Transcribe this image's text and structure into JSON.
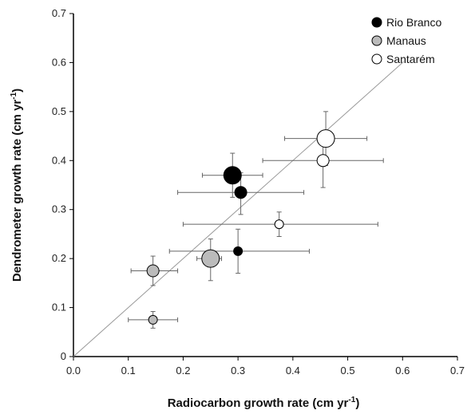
{
  "chart_data": {
    "type": "scatter",
    "xlabel": "Radiocarbon growth rate (cm yr",
    "xlabel_sup": "-1",
    "xlabel_end": ")",
    "ylabel": "Dendrometer growth rate (cm yr",
    "ylabel_sup": "-1",
    "ylabel_end": ")",
    "xlim": [
      0,
      0.7
    ],
    "ylim": [
      0,
      0.7
    ],
    "xticks": [
      "0.0",
      "0.1",
      "0.2",
      "0.3",
      "0.4",
      "0.5",
      "0.6",
      "0.7"
    ],
    "yticks": [
      "0",
      "0.1",
      "0.2",
      "0.3",
      "0.4",
      "0.5",
      "0.6",
      "0.7"
    ],
    "reference_line": "1:1",
    "legend_position": "top-right",
    "series": [
      {
        "name": "Rio Branco",
        "color": "#000000",
        "points": [
          {
            "x": 0.29,
            "y": 0.37,
            "xerr": [
              0.235,
              0.345
            ],
            "yerr": [
              0.325,
              0.415
            ],
            "size": "large"
          },
          {
            "x": 0.305,
            "y": 0.335,
            "xerr": [
              0.19,
              0.42
            ],
            "yerr": [
              0.29,
              0.375
            ],
            "size": "medium"
          },
          {
            "x": 0.3,
            "y": 0.215,
            "xerr": [
              0.175,
              0.43
            ],
            "yerr": [
              0.17,
              0.26
            ],
            "size": "small"
          }
        ]
      },
      {
        "name": "Manaus",
        "color": "#bbbbbb",
        "points": [
          {
            "x": 0.25,
            "y": 0.2,
            "xerr": [
              0.225,
              0.27
            ],
            "yerr": [
              0.155,
              0.24
            ],
            "size": "large"
          },
          {
            "x": 0.145,
            "y": 0.175,
            "xerr": [
              0.105,
              0.19
            ],
            "yerr": [
              0.145,
              0.205
            ],
            "size": "medium"
          },
          {
            "x": 0.145,
            "y": 0.075,
            "xerr": [
              0.1,
              0.19
            ],
            "yerr": [
              0.058,
              0.092
            ],
            "size": "small"
          }
        ]
      },
      {
        "name": "Santarém",
        "color": "#ffffff",
        "points": [
          {
            "x": 0.46,
            "y": 0.445,
            "xerr": [
              0.385,
              0.535
            ],
            "yerr": [
              0.39,
              0.5
            ],
            "size": "large"
          },
          {
            "x": 0.455,
            "y": 0.4,
            "xerr": [
              0.345,
              0.565
            ],
            "yerr": [
              0.345,
              0.455
            ],
            "size": "medium"
          },
          {
            "x": 0.375,
            "y": 0.27,
            "xerr": [
              0.2,
              0.555
            ],
            "yerr": [
              0.245,
              0.295
            ],
            "size": "small"
          }
        ]
      }
    ]
  }
}
